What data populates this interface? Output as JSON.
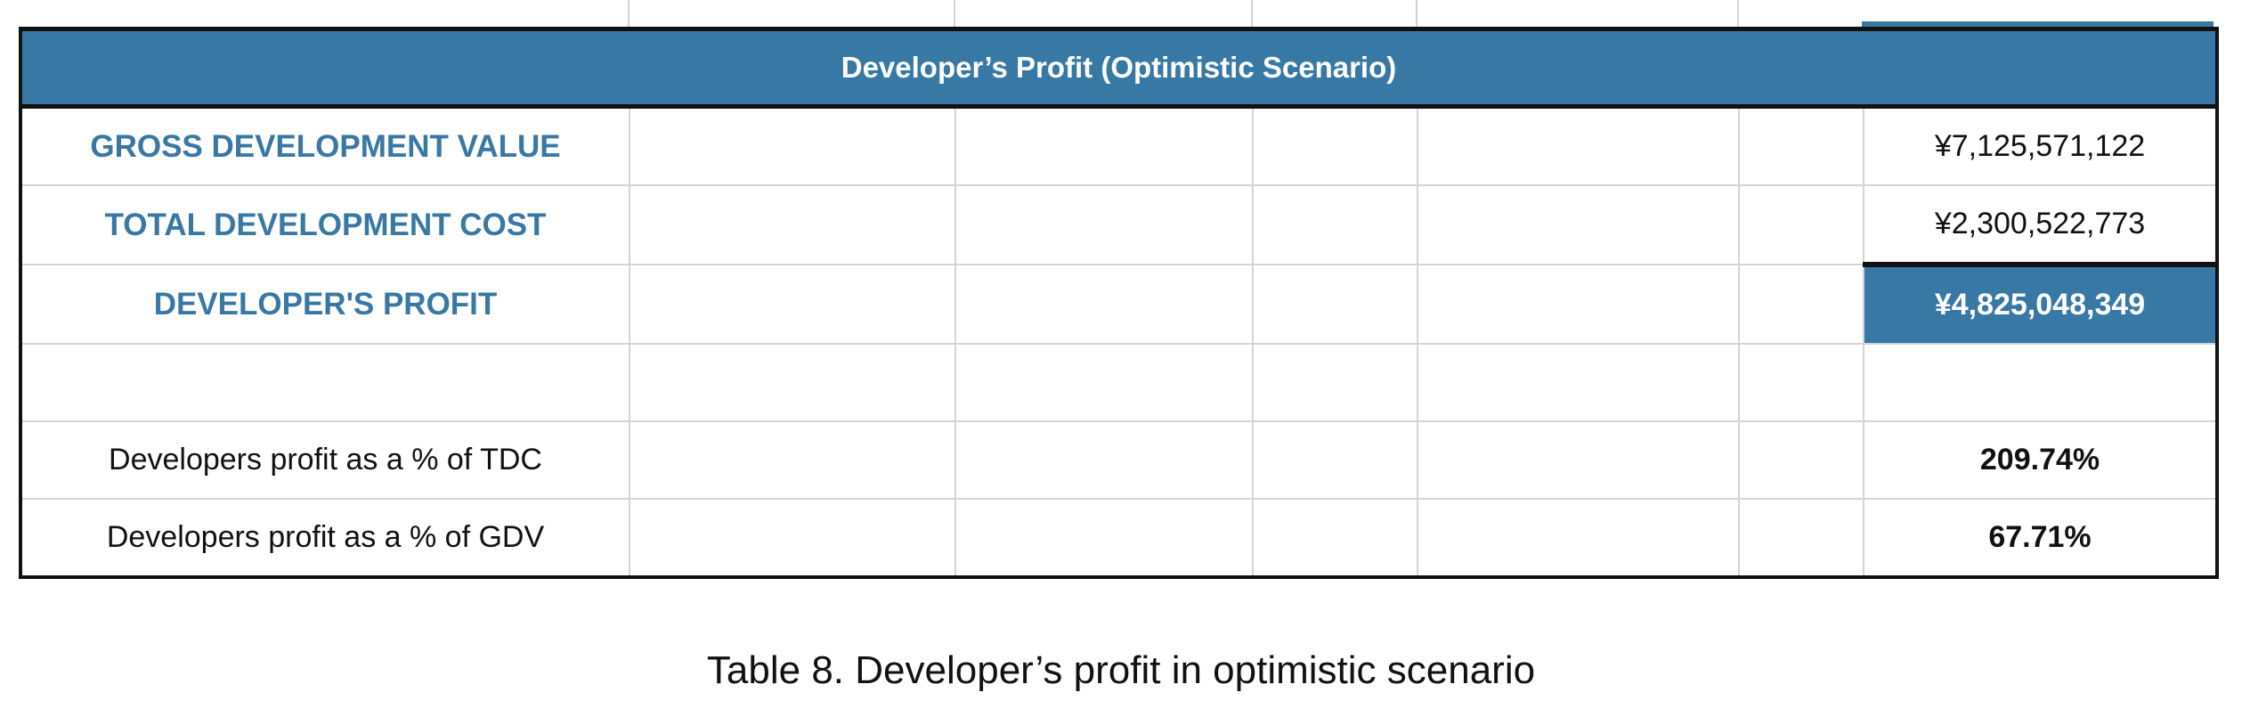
{
  "table": {
    "title": "Developer’s Profit (Optimistic Scenario)",
    "rows": [
      {
        "label": "GROSS DEVELOPMENT VALUE",
        "value": "¥7,125,571,122"
      },
      {
        "label": "TOTAL DEVELOPMENT COST",
        "value": "¥2,300,522,773"
      },
      {
        "label": "DEVELOPER'S PROFIT",
        "value": "¥4,825,048,349"
      },
      {
        "label": "",
        "value": ""
      },
      {
        "label": "Developers profit as a % of TDC",
        "value": "209.74%"
      },
      {
        "label": "Developers profit as a % of GDV",
        "value": "67.71%"
      }
    ]
  },
  "caption": "Table 8. Developer’s profit in optimistic scenario",
  "colors": {
    "accent": "#3778a5"
  }
}
